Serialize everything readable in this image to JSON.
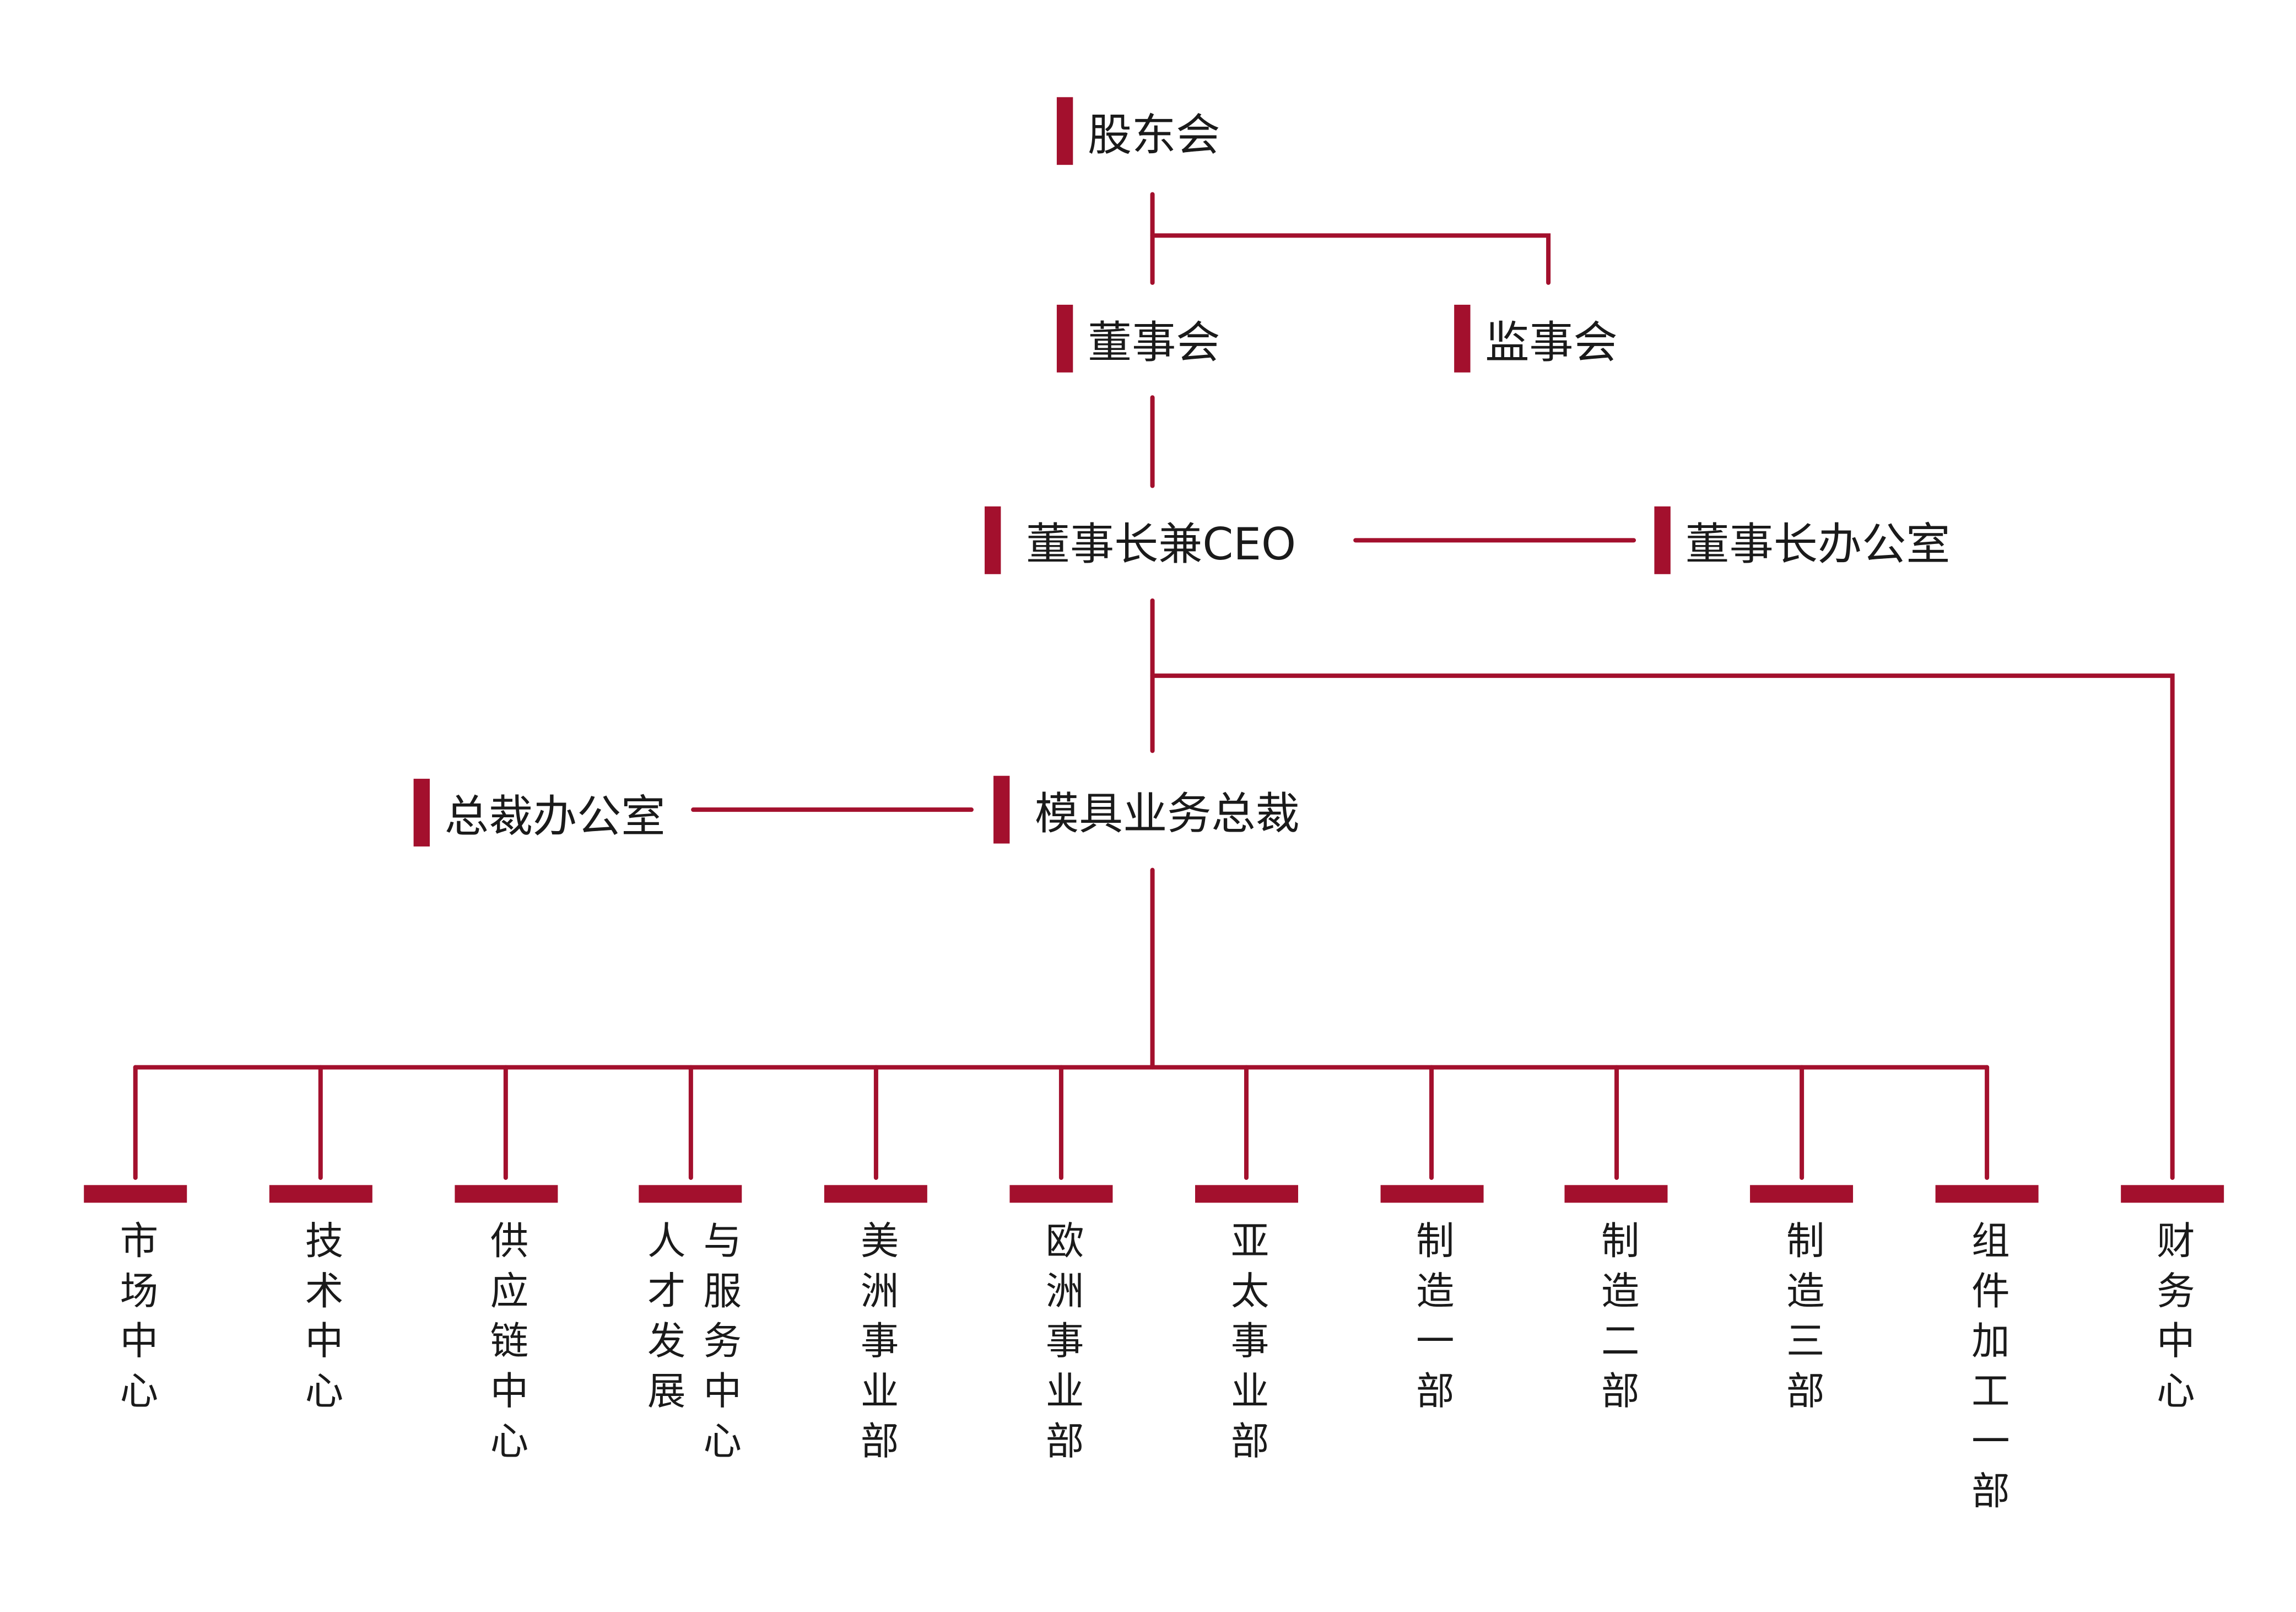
{
  "colors": {
    "accent": "#a3102d",
    "text": "#1a1a1a"
  },
  "nodes": {
    "shareholders": "股东会",
    "board": "董事会",
    "supervisors": "监事会",
    "chairman_ceo": "董事长兼CEO",
    "chairman_office": "董事长办公室",
    "president_office": "总裁办公室",
    "mold_president": "模具业务总裁"
  },
  "departments": [
    {
      "lines": [
        "市场中心"
      ]
    },
    {
      "lines": [
        "技术中心"
      ]
    },
    {
      "lines": [
        "供应链中心"
      ]
    },
    {
      "lines": [
        "人才发展",
        "与服务中心"
      ]
    },
    {
      "lines": [
        "美洲事业部"
      ]
    },
    {
      "lines": [
        "欧洲事业部"
      ]
    },
    {
      "lines": [
        "亚太事业部"
      ]
    },
    {
      "lines": [
        "制造一部"
      ]
    },
    {
      "lines": [
        "制造二部"
      ]
    },
    {
      "lines": [
        "制造三部"
      ]
    },
    {
      "lines": [
        "组件加工一部"
      ]
    },
    {
      "lines": [
        "财务中心"
      ]
    }
  ]
}
